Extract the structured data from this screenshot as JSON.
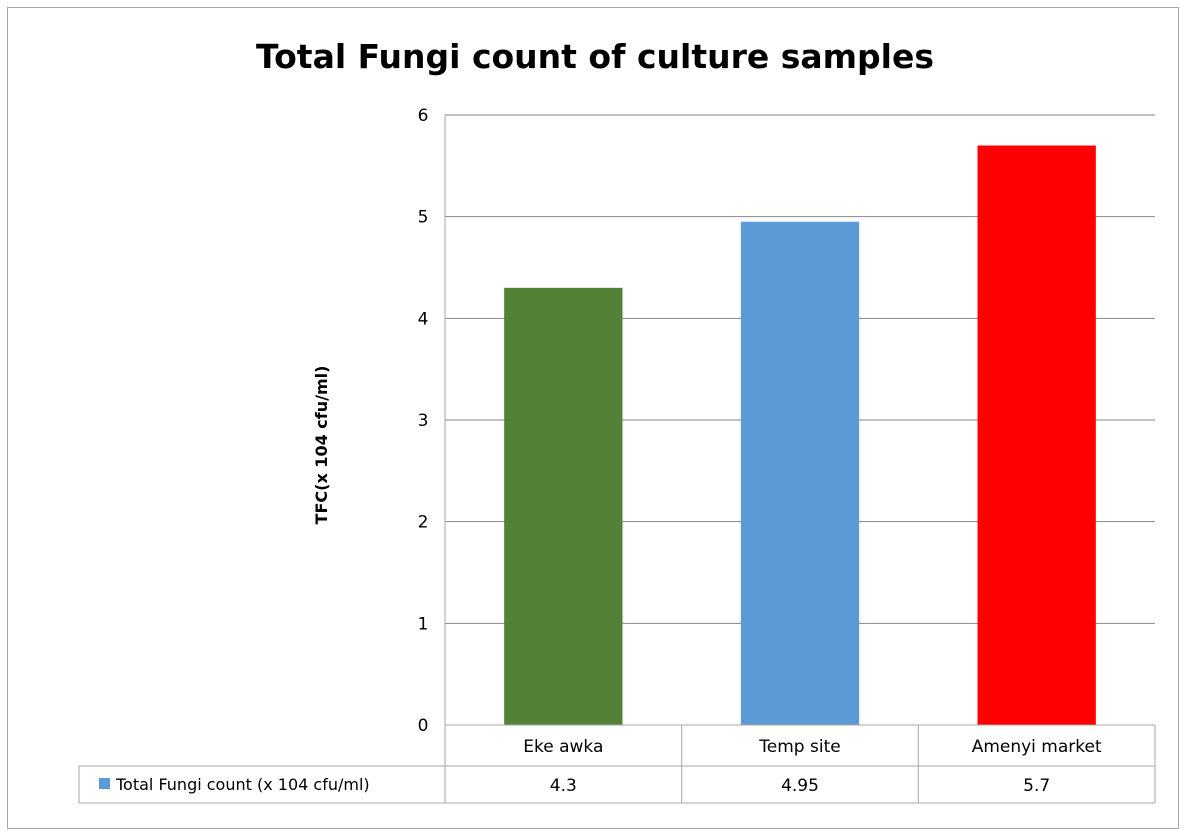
{
  "chart_data": {
    "type": "bar",
    "title": "Total Fungi count of culture samples",
    "ylabel": "TFC(x 104 cfu/ml)",
    "xlabel": "",
    "categories": [
      "Eke awka",
      "Temp site",
      "Amenyi market"
    ],
    "series": [
      {
        "name": "Total Fungi count (x 104 cfu/ml)",
        "values": [
          4.3,
          4.95,
          5.7
        ],
        "value_labels": [
          "4.3",
          "4.95",
          "5.7"
        ],
        "legend_color": "#5b9bd5"
      }
    ],
    "bar_colors": [
      "#538135",
      "#5b9bd5",
      "#ff0000"
    ],
    "ylim": [
      0,
      6
    ],
    "yticks": [
      "0",
      "1",
      "2",
      "3",
      "4",
      "5",
      "6"
    ],
    "grid": true,
    "legend": "data-table"
  }
}
